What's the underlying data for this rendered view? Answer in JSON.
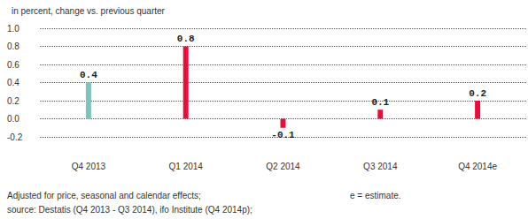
{
  "chart_data": {
    "type": "bar",
    "title": "in percent, change vs. previous quarter",
    "categories": [
      "Q4 2013",
      "Q1 2014",
      "Q2 2014",
      "Q3 2014",
      "Q4 2014e"
    ],
    "values": [
      0.4,
      0.8,
      -0.1,
      0.1,
      0.2
    ],
    "colors": [
      "#7cc4bd",
      "#e3103c",
      "#e3103c",
      "#e3103c",
      "#e3103c"
    ],
    "ylim": [
      -0.2,
      1.0
    ],
    "yticks": [
      -0.2,
      {
        "value": 0.0,
        "label": "0.0"
      },
      0.2,
      0.4,
      0.6,
      0.8,
      {
        "value": 1.0,
        "label": "1.0"
      }
    ],
    "grid": true,
    "data_labels": true,
    "annotations": [
      "Adjusted for price, seasonal and calendar effects;",
      "e = estimate.",
      "source: Destatis (Q4 2013 - Q3 2014), ifo Institute (Q4 2014p);"
    ]
  }
}
